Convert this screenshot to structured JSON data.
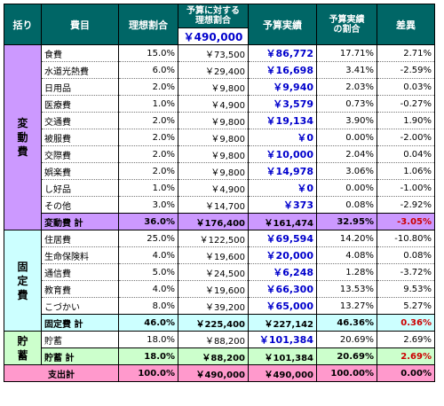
{
  "headers": {
    "group": "括り",
    "item": "費目",
    "ideal_ratio": "理想割合",
    "budget_ratio": "予算に対する\n理想割合",
    "budget_value": "￥490,000",
    "actual": "予算実績",
    "actual_ratio": "予算実績\nの割合",
    "diff": "差異"
  },
  "groups": {
    "variable": "変\n動\n費",
    "fixed": "固\n定\n費",
    "savings": "貯\n蓄"
  },
  "variable_rows": [
    {
      "name": "食費",
      "ideal": "15.0%",
      "budget": "￥73,500",
      "actual": "￥86,772",
      "actual_ratio": "17.71%",
      "diff": "2.71%"
    },
    {
      "name": "水道光熱費",
      "ideal": "6.0%",
      "budget": "￥29,400",
      "actual": "￥16,698",
      "actual_ratio": "3.41%",
      "diff": "-2.59%"
    },
    {
      "name": "日用品",
      "ideal": "2.0%",
      "budget": "￥9,800",
      "actual": "￥9,940",
      "actual_ratio": "2.03%",
      "diff": "0.03%"
    },
    {
      "name": "医療費",
      "ideal": "1.0%",
      "budget": "￥4,900",
      "actual": "￥3,579",
      "actual_ratio": "0.73%",
      "diff": "-0.27%"
    },
    {
      "name": "交通費",
      "ideal": "2.0%",
      "budget": "￥9,800",
      "actual": "￥19,134",
      "actual_ratio": "3.90%",
      "diff": "1.90%"
    },
    {
      "name": "被服費",
      "ideal": "2.0%",
      "budget": "￥9,800",
      "actual": "￥0",
      "actual_ratio": "0.00%",
      "diff": "-2.00%"
    },
    {
      "name": "交際費",
      "ideal": "2.0%",
      "budget": "￥9,800",
      "actual": "￥10,000",
      "actual_ratio": "2.04%",
      "diff": "0.04%"
    },
    {
      "name": "娯楽費",
      "ideal": "2.0%",
      "budget": "￥9,800",
      "actual": "￥14,978",
      "actual_ratio": "3.06%",
      "diff": "1.06%"
    },
    {
      "name": "し好品",
      "ideal": "1.0%",
      "budget": "￥4,900",
      "actual": "￥0",
      "actual_ratio": "0.00%",
      "diff": "-1.00%"
    },
    {
      "name": "その他",
      "ideal": "3.0%",
      "budget": "￥14,700",
      "actual": "￥373",
      "actual_ratio": "0.08%",
      "diff": "-2.92%"
    }
  ],
  "variable_total": {
    "label": "変動費 計",
    "ideal": "36.0%",
    "budget": "￥176,400",
    "actual": "￥161,474",
    "actual_ratio": "32.95%",
    "diff": "-3.05%"
  },
  "fixed_rows": [
    {
      "name": "住居費",
      "ideal": "25.0%",
      "budget": "￥122,500",
      "actual": "￥69,594",
      "actual_ratio": "14.20%",
      "diff": "-10.80%"
    },
    {
      "name": "生命保険料",
      "ideal": "4.0%",
      "budget": "￥19,600",
      "actual": "￥20,000",
      "actual_ratio": "4.08%",
      "diff": "0.08%"
    },
    {
      "name": "通信費",
      "ideal": "5.0%",
      "budget": "￥24,500",
      "actual": "￥6,248",
      "actual_ratio": "1.28%",
      "diff": "-3.72%"
    },
    {
      "name": "教育費",
      "ideal": "4.0%",
      "budget": "￥19,600",
      "actual": "￥66,300",
      "actual_ratio": "13.53%",
      "diff": "9.53%"
    },
    {
      "name": "こづかい",
      "ideal": "8.0%",
      "budget": "￥39,200",
      "actual": "￥65,000",
      "actual_ratio": "13.27%",
      "diff": "5.27%"
    }
  ],
  "fixed_total": {
    "label": "固定費 計",
    "ideal": "46.0%",
    "budget": "￥225,400",
    "actual": "￥227,142",
    "actual_ratio": "46.36%",
    "diff": "0.36%"
  },
  "savings_row": {
    "name": "貯蓄",
    "ideal": "18.0%",
    "budget": "￥88,200",
    "actual": "￥101,384",
    "actual_ratio": "20.69%",
    "diff": "2.69%"
  },
  "savings_total": {
    "label": "貯蓄 計",
    "ideal": "18.0%",
    "budget": "￥88,200",
    "actual": "￥101,384",
    "actual_ratio": "20.69%",
    "diff": "2.69%"
  },
  "grand_total": {
    "label": "支出計",
    "ideal": "100.0%",
    "budget": "￥490,000",
    "actual": "￥490,000",
    "actual_ratio": "100.00%",
    "diff": "0.00%"
  }
}
